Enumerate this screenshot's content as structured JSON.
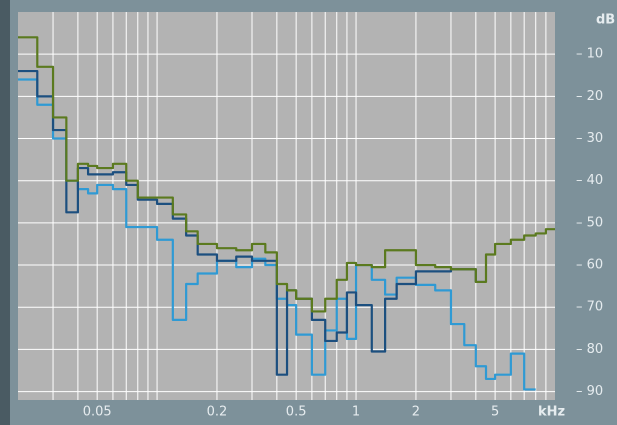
{
  "chart_data": {
    "type": "line",
    "step": "post",
    "log_x": true,
    "xlabel": "kHz",
    "ylabel": "dB",
    "xlim": [
      0.02,
      10
    ],
    "ylim": [
      -92,
      0
    ],
    "xticks": [
      0.05,
      0.2,
      0.5,
      1,
      2,
      5
    ],
    "xgrid": [
      0.03,
      0.04,
      0.05,
      0.06,
      0.07,
      0.08,
      0.09,
      0.1,
      0.2,
      0.3,
      0.4,
      0.5,
      0.6,
      0.7,
      0.8,
      0.9,
      1,
      2,
      3,
      4,
      5,
      6,
      7,
      8,
      9
    ],
    "yticks": [
      {
        "value": -10,
        "label": "– 10"
      },
      {
        "value": -20,
        "label": "– 20"
      },
      {
        "value": -30,
        "label": "– 30"
      },
      {
        "value": -40,
        "label": "– 40"
      },
      {
        "value": -50,
        "label": "– 50"
      },
      {
        "value": -60,
        "label": "– 60"
      },
      {
        "value": -70,
        "label": "– 70"
      },
      {
        "value": -80,
        "label": "– 80"
      },
      {
        "value": -90,
        "label": "– 90"
      }
    ],
    "grid": true,
    "x": [
      0.02,
      0.025,
      0.03,
      0.035,
      0.04,
      0.045,
      0.05,
      0.06,
      0.07,
      0.08,
      0.1,
      0.12,
      0.14,
      0.16,
      0.2,
      0.25,
      0.3,
      0.35,
      0.4,
      0.45,
      0.5,
      0.6,
      0.7,
      0.8,
      0.9,
      1,
      1.2,
      1.4,
      1.6,
      2,
      2.5,
      3,
      3.5,
      4,
      4.5,
      5,
      6,
      7,
      8,
      9
    ],
    "series": [
      {
        "color": "#2f9ad4",
        "values": [
          -16,
          -22,
          -30,
          -40,
          -42,
          -43,
          -41,
          -42,
          -51,
          -51,
          -54,
          -73,
          -64.5,
          -62,
          -59,
          -60.5,
          -58.5,
          -60,
          -68,
          -69.5,
          -76.5,
          -86,
          -75.5,
          -68,
          -77.5,
          -60,
          -63.5,
          -67,
          -63,
          -64.7,
          -66,
          -74,
          -79,
          -84,
          -87,
          -86,
          -81,
          -89.5,
          null,
          null
        ]
      },
      {
        "color": "#1c4f7f",
        "values": [
          -14,
          -20,
          -28,
          -47.5,
          -37,
          -38.5,
          -38.5,
          -38,
          -41,
          -44.5,
          -45.5,
          -49,
          -53,
          -57.5,
          -59,
          -58,
          -59,
          -59,
          -86,
          -66,
          -68,
          -73,
          -78,
          -76,
          -66.5,
          -69.5,
          -80.5,
          -68,
          -64.5,
          -61.5,
          -61.5,
          -61,
          -61,
          -64,
          null,
          null,
          null,
          null,
          null,
          null
        ]
      },
      {
        "color": "#5b7a1f",
        "values": [
          -6,
          -13,
          -25,
          -40,
          -36,
          -36.5,
          -37,
          -36,
          -40,
          -44,
          -44,
          -48,
          -52,
          -55,
          -56,
          -56.5,
          -55,
          -57,
          -64.5,
          -66,
          -68,
          -71,
          -68,
          -63.5,
          -59.5,
          -60,
          -60.5,
          -56.5,
          -56.5,
          -60,
          -60.5,
          -61,
          -61,
          -64,
          -57.5,
          -55,
          -54,
          -53,
          -52.5,
          -51.5
        ]
      }
    ]
  }
}
